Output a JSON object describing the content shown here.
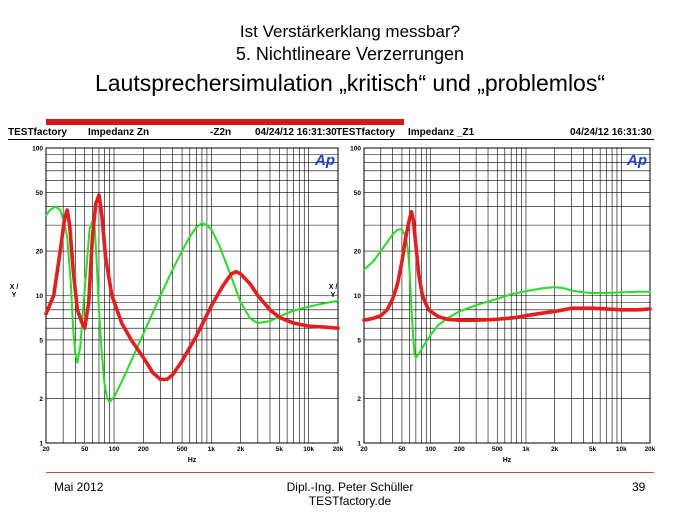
{
  "slide": {
    "title1": "Ist Verstärkerklang messbar?",
    "title2": "5. Nichtlineare Verzerrungen",
    "title3": "Lautsprechersimulation „kritisch“ und „problemlos“",
    "footer_left": "Mai 2012",
    "footer_center_1": "Dipl.-Ing. Peter Schüller",
    "footer_center_2": "TESTfactory.de",
    "page": "39"
  },
  "colors": {
    "red": "#e81c1c",
    "green": "#22e022",
    "grid": "#000000",
    "accent": "#d11b1b"
  },
  "chart_data": [
    {
      "type": "line",
      "header": {
        "brand": "TESTfactory",
        "title": "Impedanz  Zn",
        "series_tag": "-Z2n",
        "timestamp": "04/24/12 16:31:30"
      },
      "logo": "Ap",
      "xlabel": "Hz",
      "ylabel": "X / Y",
      "xscale": "log",
      "yscale": "log",
      "xlim": [
        20,
        20000
      ],
      "ylim": [
        1,
        100
      ],
      "x_ticks": [
        "20",
        "50",
        "100",
        "200",
        "500",
        "1k",
        "2k",
        "5k",
        "10k",
        "20k"
      ],
      "y_ticks": [
        "1",
        "2",
        "5",
        "10",
        "20",
        "50",
        "100"
      ],
      "grid": true,
      "series": [
        {
          "color": "red",
          "points": [
            [
              20,
              7.5
            ],
            [
              24,
              10
            ],
            [
              28,
              20
            ],
            [
              31,
              33
            ],
            [
              33,
              38
            ],
            [
              35,
              30
            ],
            [
              38,
              15
            ],
            [
              42,
              8
            ],
            [
              47,
              6.5
            ],
            [
              50,
              6
            ],
            [
              55,
              9
            ],
            [
              60,
              25
            ],
            [
              65,
              42
            ],
            [
              70,
              48
            ],
            [
              75,
              35
            ],
            [
              82,
              18
            ],
            [
              95,
              10
            ],
            [
              120,
              6.5
            ],
            [
              150,
              5
            ],
            [
              200,
              3.8
            ],
            [
              250,
              3
            ],
            [
              300,
              2.7
            ],
            [
              350,
              2.7
            ],
            [
              400,
              2.9
            ],
            [
              500,
              3.6
            ],
            [
              700,
              5.3
            ],
            [
              1000,
              8.5
            ],
            [
              1300,
              11.5
            ],
            [
              1600,
              14
            ],
            [
              1800,
              14.5
            ],
            [
              2000,
              14
            ],
            [
              2500,
              12
            ],
            [
              3000,
              10
            ],
            [
              4000,
              8
            ],
            [
              5000,
              7.1
            ],
            [
              7000,
              6.5
            ],
            [
              10000,
              6.2
            ],
            [
              15000,
              6.1
            ],
            [
              20000,
              6
            ]
          ]
        },
        {
          "color": "green",
          "points": [
            [
              20,
              35
            ],
            [
              22,
              38
            ],
            [
              25,
              40
            ],
            [
              28,
              38
            ],
            [
              30,
              33
            ],
            [
              33,
              25
            ],
            [
              36,
              12
            ],
            [
              38,
              6
            ],
            [
              40,
              4
            ],
            [
              42,
              3.5
            ],
            [
              45,
              4.5
            ],
            [
              48,
              8
            ],
            [
              52,
              15
            ],
            [
              56,
              28
            ],
            [
              60,
              32
            ],
            [
              63,
              30
            ],
            [
              66,
              18
            ],
            [
              70,
              8
            ],
            [
              75,
              4
            ],
            [
              80,
              2.5
            ],
            [
              85,
              2
            ],
            [
              90,
              1.9
            ],
            [
              100,
              2.05
            ],
            [
              120,
              2.6
            ],
            [
              150,
              3.6
            ],
            [
              200,
              5.5
            ],
            [
              300,
              10
            ],
            [
              400,
              15
            ],
            [
              500,
              20
            ],
            [
              600,
              25
            ],
            [
              700,
              29
            ],
            [
              800,
              31
            ],
            [
              900,
              30
            ],
            [
              1000,
              28
            ],
            [
              1200,
              22
            ],
            [
              1500,
              15
            ],
            [
              2000,
              9
            ],
            [
              2500,
              7
            ],
            [
              3000,
              6.5
            ],
            [
              4000,
              6.7
            ],
            [
              5000,
              7.2
            ],
            [
              7000,
              7.9
            ],
            [
              10000,
              8.4
            ],
            [
              15000,
              8.9
            ],
            [
              20000,
              9.2
            ]
          ]
        }
      ]
    },
    {
      "type": "line",
      "header": {
        "brand": "TESTfactory",
        "title": "Impedanz  _Z1",
        "series_tag": "",
        "timestamp": "04/24/12 16:31:30"
      },
      "logo": "Ap",
      "xlabel": "Hz",
      "ylabel": "X / Y",
      "xscale": "log",
      "yscale": "log",
      "xlim": [
        20,
        20000
      ],
      "ylim": [
        1,
        100
      ],
      "x_ticks": [
        "20",
        "50",
        "100",
        "200",
        "500",
        "1k",
        "2k",
        "5k",
        "10k",
        "20k"
      ],
      "y_ticks": [
        "1",
        "2",
        "5",
        "10",
        "20",
        "50",
        "100"
      ],
      "grid": true,
      "series": [
        {
          "color": "red",
          "points": [
            [
              20,
              6.8
            ],
            [
              25,
              7
            ],
            [
              30,
              7.3
            ],
            [
              35,
              8
            ],
            [
              40,
              9.5
            ],
            [
              45,
              12
            ],
            [
              50,
              17
            ],
            [
              55,
              25
            ],
            [
              60,
              33
            ],
            [
              63,
              37
            ],
            [
              66,
              32
            ],
            [
              70,
              22
            ],
            [
              75,
              14
            ],
            [
              82,
              10
            ],
            [
              95,
              8
            ],
            [
              120,
              7.2
            ],
            [
              150,
              6.9
            ],
            [
              200,
              6.8
            ],
            [
              300,
              6.8
            ],
            [
              500,
              6.9
            ],
            [
              800,
              7.1
            ],
            [
              1000,
              7.3
            ],
            [
              1500,
              7.6
            ],
            [
              2000,
              7.8
            ],
            [
              2500,
              8
            ],
            [
              3000,
              8.2
            ],
            [
              5000,
              8.2
            ],
            [
              10000,
              8
            ],
            [
              15000,
              8
            ],
            [
              20000,
              8.1
            ]
          ]
        },
        {
          "color": "green",
          "points": [
            [
              20,
              15
            ],
            [
              25,
              17
            ],
            [
              30,
              20
            ],
            [
              35,
              23
            ],
            [
              40,
              26
            ],
            [
              45,
              28
            ],
            [
              50,
              28
            ],
            [
              55,
              25
            ],
            [
              58,
              20
            ],
            [
              60,
              15
            ],
            [
              63,
              8
            ],
            [
              66,
              5
            ],
            [
              68,
              4
            ],
            [
              70,
              3.8
            ],
            [
              75,
              4
            ],
            [
              85,
              4.6
            ],
            [
              100,
              5.4
            ],
            [
              120,
              6.3
            ],
            [
              150,
              7
            ],
            [
              200,
              7.8
            ],
            [
              300,
              8.6
            ],
            [
              500,
              9.5
            ],
            [
              700,
              10.2
            ],
            [
              1000,
              10.7
            ],
            [
              1500,
              11.2
            ],
            [
              2000,
              11.4
            ],
            [
              2500,
              11.2
            ],
            [
              3000,
              10.8
            ],
            [
              4000,
              10.5
            ],
            [
              5000,
              10.4
            ],
            [
              7000,
              10.4
            ],
            [
              10000,
              10.5
            ],
            [
              15000,
              10.6
            ],
            [
              20000,
              10.6
            ]
          ]
        }
      ]
    }
  ]
}
